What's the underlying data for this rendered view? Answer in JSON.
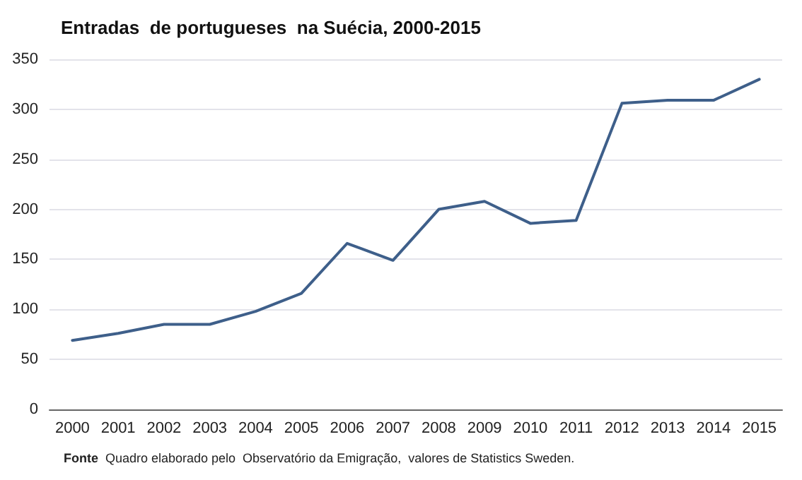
{
  "chart_data": {
    "type": "line",
    "title": "Entradas  de portugueses  na Suécia, 2000-2015",
    "categories": [
      "2000",
      "2001",
      "2002",
      "2003",
      "2004",
      "2005",
      "2006",
      "2007",
      "2008",
      "2009",
      "2010",
      "2011",
      "2012",
      "2013",
      "2014",
      "2015"
    ],
    "values": [
      69,
      76,
      85,
      85,
      98,
      116,
      166,
      149,
      200,
      208,
      186,
      189,
      306,
      309,
      309,
      330
    ],
    "color": "#3e5f8a",
    "ylim": [
      0,
      350
    ],
    "yticks": [
      0,
      50,
      100,
      150,
      200,
      250,
      300,
      350
    ],
    "grid": "y",
    "marker": "none",
    "line_style": "solid",
    "annotations": [
      "Fonte",
      "Quadro elaborado pelo  Observatório da Emigração,  valores de Statistics Sweden."
    ]
  }
}
